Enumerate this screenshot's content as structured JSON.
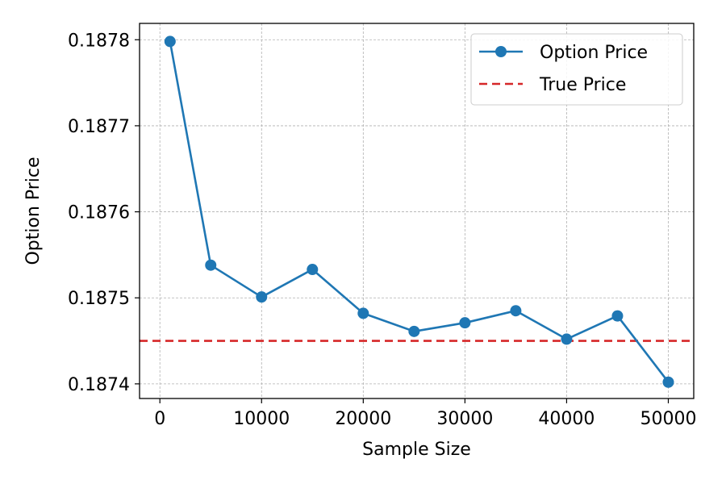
{
  "chart_data": {
    "type": "line",
    "title": "",
    "xlabel": "Sample Size",
    "ylabel": "Option Price",
    "xlim": [
      -2000,
      52500
    ],
    "ylim": [
      0.187383,
      0.187819
    ],
    "xticks": [
      0,
      10000,
      20000,
      30000,
      40000,
      50000
    ],
    "xtick_labels": [
      "0",
      "10000",
      "20000",
      "30000",
      "40000",
      "50000"
    ],
    "yticks": [
      0.1874,
      0.1875,
      0.1876,
      0.1877,
      0.1878
    ],
    "ytick_labels": [
      "0.1874",
      "0.1875",
      "0.1876",
      "0.1877",
      "0.1878"
    ],
    "grid": true,
    "legend_position": "upper right",
    "series": [
      {
        "name": "Option Price",
        "style": "solid line with circle markers",
        "color": "#1f77b4",
        "x": [
          1000,
          5000,
          10000,
          15000,
          20000,
          25000,
          30000,
          35000,
          40000,
          45000,
          50000
        ],
        "y": [
          0.18779799,
          0.18753799,
          0.18750099,
          0.18753299,
          0.18748199,
          0.18746099,
          0.18747099,
          0.18748499,
          0.18745199,
          0.18747899,
          0.18740199
        ]
      },
      {
        "name": "True Price",
        "style": "dashed horizontal line",
        "color": "#d62728",
        "y_constant": 0.18745
      }
    ]
  }
}
